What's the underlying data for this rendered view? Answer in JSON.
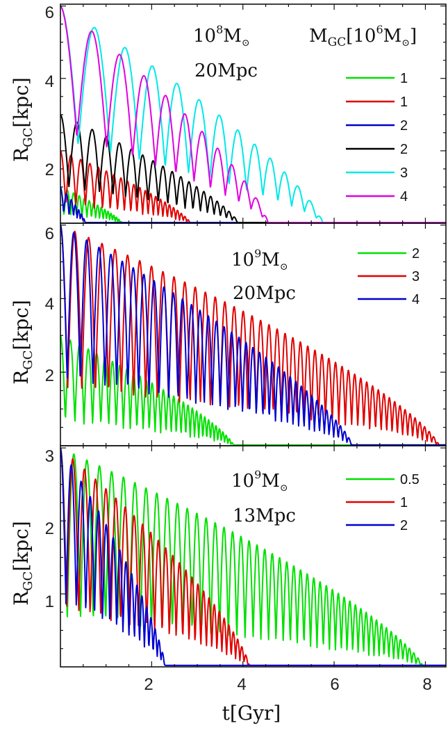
{
  "figure": {
    "xlabel_main": "t",
    "xlabel_unit": "[Gyr]",
    "x_ticks": [
      "2",
      "4",
      "6",
      "8"
    ]
  },
  "chart_data": [
    {
      "type": "line",
      "xlim": [
        0,
        8.45
      ],
      "ylim": [
        0,
        6.05
      ],
      "yticks": [
        "2",
        "4",
        "6"
      ],
      "ylabel_main": "R",
      "ylabel_sub": "GC",
      "ylabel_unit": "[kpc]",
      "annotation": {
        "mass_base": "10",
        "mass_exp": "8",
        "mass_unit": "M",
        "distance": "20Mpc"
      },
      "legend_title": {
        "main": "M",
        "sub": "GC",
        "open": "[10",
        "exp": "6",
        "unit": "M",
        "close": "]"
      },
      "series": [
        {
          "name": "1",
          "color": "#00e000",
          "r0": 1.0,
          "t_end": 1.35,
          "period": 0.16
        },
        {
          "name": "1",
          "color": "#e00000",
          "r0": 2.0,
          "t_end": 2.85,
          "period": 0.24
        },
        {
          "name": "2",
          "color": "#0000d0",
          "r0": 1.0,
          "t_end": 0.55,
          "period": 0.15
        },
        {
          "name": "2",
          "color": "#000000",
          "r0": 3.0,
          "t_end": 3.9,
          "period": 0.38
        },
        {
          "name": "3",
          "color": "#00e8e8",
          "r0": 6.0,
          "t_end": 5.75,
          "period": 0.8
        },
        {
          "name": "4",
          "color": "#e000e0",
          "r0": 6.0,
          "t_end": 4.55,
          "period": 0.75
        }
      ]
    },
    {
      "type": "line",
      "xlim": [
        0,
        8.45
      ],
      "ylim": [
        0,
        6.05
      ],
      "yticks": [
        "2",
        "4",
        "6"
      ],
      "ylabel_main": "R",
      "ylabel_sub": "GC",
      "ylabel_unit": "[kpc]",
      "annotation": {
        "mass_base": "10",
        "mass_exp": "9",
        "mass_unit": "M",
        "distance": "20Mpc"
      },
      "series": [
        {
          "name": "2",
          "color": "#00e000",
          "r0": 3.0,
          "t_end": 3.8,
          "period": 0.22
        },
        {
          "name": "3",
          "color": "#e00000",
          "r0": 6.0,
          "t_end": 8.3,
          "period": 0.32
        },
        {
          "name": "4",
          "color": "#0000d0",
          "r0": 6.0,
          "t_end": 6.4,
          "period": 0.3
        }
      ]
    },
    {
      "type": "line",
      "xlim": [
        0,
        8.45
      ],
      "ylim": [
        0,
        3.03
      ],
      "yticks": [
        "1",
        "2",
        "3"
      ],
      "ylabel_main": "R",
      "ylabel_sub": "GC",
      "ylabel_unit": "[kpc]",
      "annotation": {
        "mass_base": "10",
        "mass_exp": "9",
        "mass_unit": "M",
        "distance": "13Mpc"
      },
      "series": [
        {
          "name": "0.5",
          "color": "#00e000",
          "r0": 3.0,
          "t_end": 7.95,
          "period": 0.3
        },
        {
          "name": "1",
          "color": "#e00000",
          "r0": 3.0,
          "t_end": 4.15,
          "period": 0.28
        },
        {
          "name": "2",
          "color": "#0000d0",
          "r0": 3.0,
          "t_end": 2.3,
          "period": 0.25
        }
      ]
    }
  ]
}
